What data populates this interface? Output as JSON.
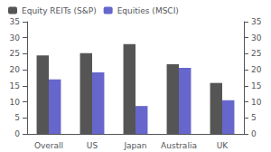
{
  "chart_data": {
    "type": "bar",
    "categories": [
      "Overall",
      "US",
      "Japan",
      "Australia",
      "UK"
    ],
    "series": [
      {
        "name": "Equity REITs (S&P)",
        "color": "#555555",
        "values": [
          24.5,
          25.2,
          28.0,
          21.7,
          15.9
        ]
      },
      {
        "name": "Equities (MSCI)",
        "color": "#6666cc",
        "values": [
          17.0,
          19.2,
          8.7,
          20.6,
          10.5
        ]
      }
    ],
    "ylim": [
      0,
      35
    ],
    "yticks": [
      0,
      5,
      10,
      15,
      20,
      25,
      30,
      35
    ],
    "y2lim": [
      0,
      35
    ],
    "y2ticks": [
      0,
      5,
      10,
      15,
      20,
      25,
      30,
      35
    ],
    "grid": false,
    "legend": "upper left"
  }
}
